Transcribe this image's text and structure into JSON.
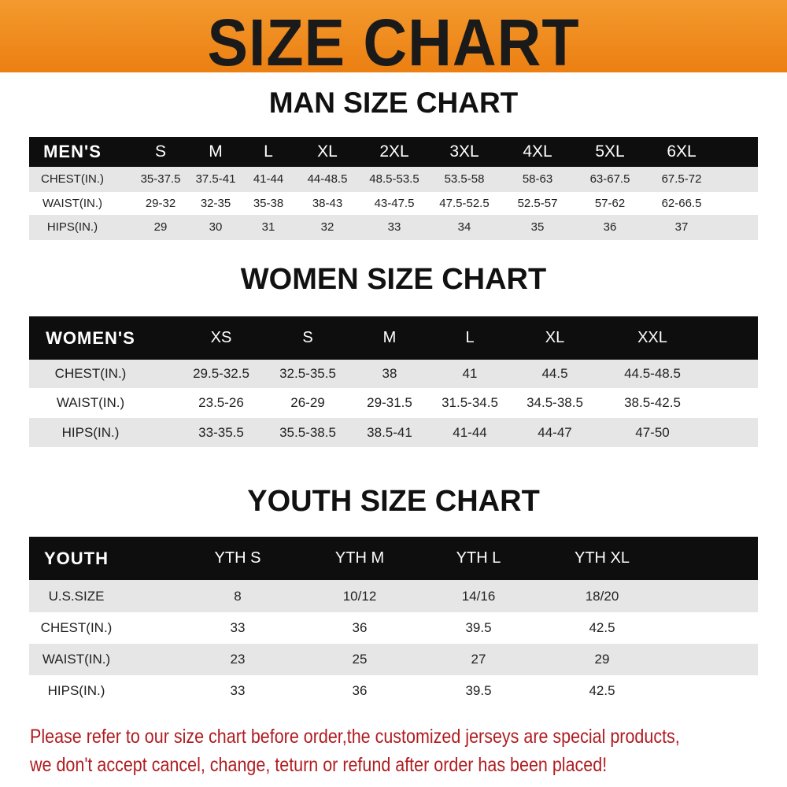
{
  "banner_title": "SIZE CHART",
  "men": {
    "title": "MAN SIZE CHART",
    "header": [
      "MEN'S",
      "S",
      "M",
      "L",
      "XL",
      "2XL",
      "3XL",
      "4XL",
      "5XL",
      "6XL"
    ],
    "rows": [
      [
        "CHEST(IN.)",
        "35-37.5",
        "37.5-41",
        "41-44",
        "44-48.5",
        "48.5-53.5",
        "53.5-58",
        "58-63",
        "63-67.5",
        "67.5-72"
      ],
      [
        "WAIST(IN.)",
        "29-32",
        "32-35",
        "35-38",
        "38-43",
        "43-47.5",
        "47.5-52.5",
        "52.5-57",
        "57-62",
        "62-66.5"
      ],
      [
        "HIPS(IN.)",
        "29",
        "30",
        "31",
        "32",
        "33",
        "34",
        "35",
        "36",
        "37"
      ]
    ]
  },
  "women": {
    "title": "WOMEN SIZE CHART",
    "header": [
      "WOMEN'S",
      "XS",
      "S",
      "M",
      "L",
      "XL",
      "XXL"
    ],
    "rows": [
      [
        "CHEST(IN.)",
        "29.5-32.5",
        "32.5-35.5",
        "38",
        "41",
        "44.5",
        "44.5-48.5"
      ],
      [
        "WAIST(IN.)",
        "23.5-26",
        "26-29",
        "29-31.5",
        "31.5-34.5",
        "34.5-38.5",
        "38.5-42.5"
      ],
      [
        "HIPS(IN.)",
        "33-35.5",
        "35.5-38.5",
        "38.5-41",
        "41-44",
        "44-47",
        "47-50"
      ]
    ]
  },
  "youth": {
    "title": "YOUTH SIZE CHART",
    "header": [
      "YOUTH",
      "YTH S",
      "YTH M",
      "YTH L",
      "YTH XL"
    ],
    "rows": [
      [
        "U.S.SIZE",
        "8",
        "10/12",
        "14/16",
        "18/20"
      ],
      [
        "CHEST(IN.)",
        "33",
        "36",
        "39.5",
        "42.5"
      ],
      [
        "WAIST(IN.)",
        "23",
        "25",
        "27",
        "29"
      ],
      [
        "HIPS(IN.)",
        "33",
        "36",
        "39.5",
        "42.5"
      ]
    ]
  },
  "notice": {
    "line1": "Please refer to our size chart before order,the customized jerseys are special products,",
    "line2": "we don't accept cancel, change, teturn or refund after order has been placed!"
  },
  "colors": {
    "banner": "#ee8a1e",
    "header_row": "#0e0e0e",
    "stripe": "#e6e6e6",
    "notice": "#b01c20"
  }
}
